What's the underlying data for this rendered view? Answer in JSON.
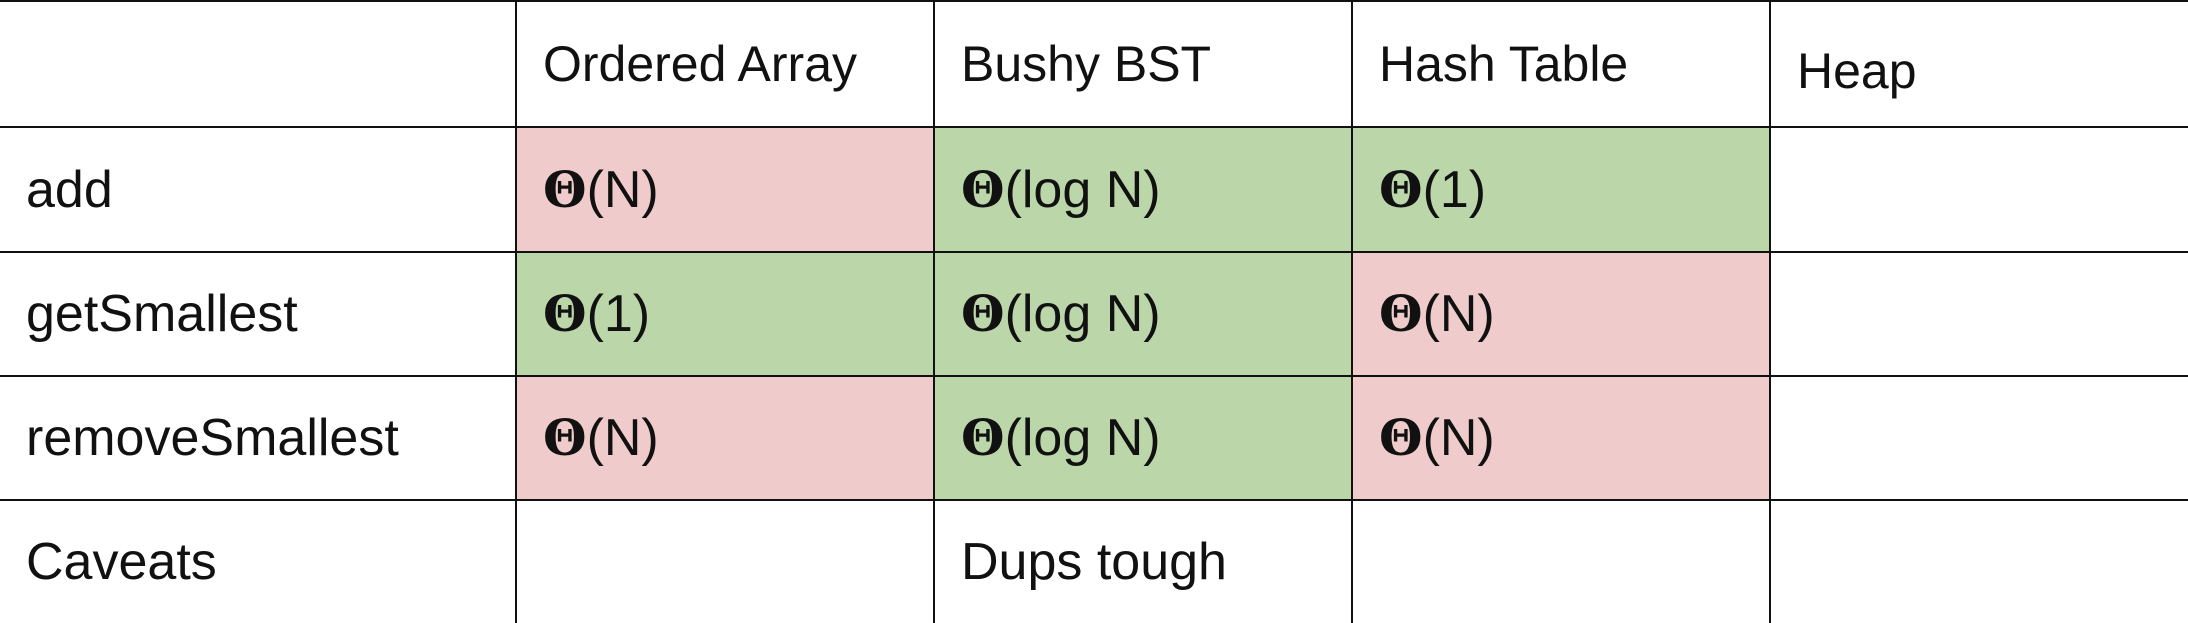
{
  "table": {
    "header": {
      "blank": "",
      "columns": [
        "Ordered Array",
        "Bushy BST",
        "Hash Table",
        "Heap"
      ]
    },
    "rows": [
      {
        "label": "add",
        "cells": [
          {
            "symbol": "Θ",
            "text": "(N)",
            "color": "#efcccb"
          },
          {
            "symbol": "Θ",
            "text": "(log N)",
            "color": "#bbd7aa"
          },
          {
            "symbol": "Θ",
            "text": "(1)",
            "color": "#bbd7aa"
          },
          {
            "symbol": "",
            "text": "",
            "color": "#ffffff"
          }
        ]
      },
      {
        "label": "getSmallest",
        "cells": [
          {
            "symbol": "Θ",
            "text": "(1)",
            "color": "#bbd7aa"
          },
          {
            "symbol": "Θ",
            "text": "(log N)",
            "color": "#bbd7aa"
          },
          {
            "symbol": "Θ",
            "text": "(N)",
            "color": "#efcccb"
          },
          {
            "symbol": "",
            "text": "",
            "color": "#ffffff"
          }
        ]
      },
      {
        "label": "removeSmallest",
        "cells": [
          {
            "symbol": "Θ",
            "text": "(N)",
            "color": "#efcccb"
          },
          {
            "symbol": "Θ",
            "text": "(log N)",
            "color": "#bbd7aa"
          },
          {
            "symbol": "Θ",
            "text": "(N)",
            "color": "#efcccb"
          },
          {
            "symbol": "",
            "text": "",
            "color": "#ffffff"
          }
        ]
      },
      {
        "label": "Caveats",
        "cells": [
          {
            "symbol": "",
            "text": "",
            "color": "#ffffff"
          },
          {
            "symbol": "",
            "text": "Dups tough",
            "color": "#ffffff"
          },
          {
            "symbol": "",
            "text": "",
            "color": "#ffffff"
          },
          {
            "symbol": "",
            "text": "",
            "color": "#ffffff"
          }
        ]
      }
    ]
  }
}
